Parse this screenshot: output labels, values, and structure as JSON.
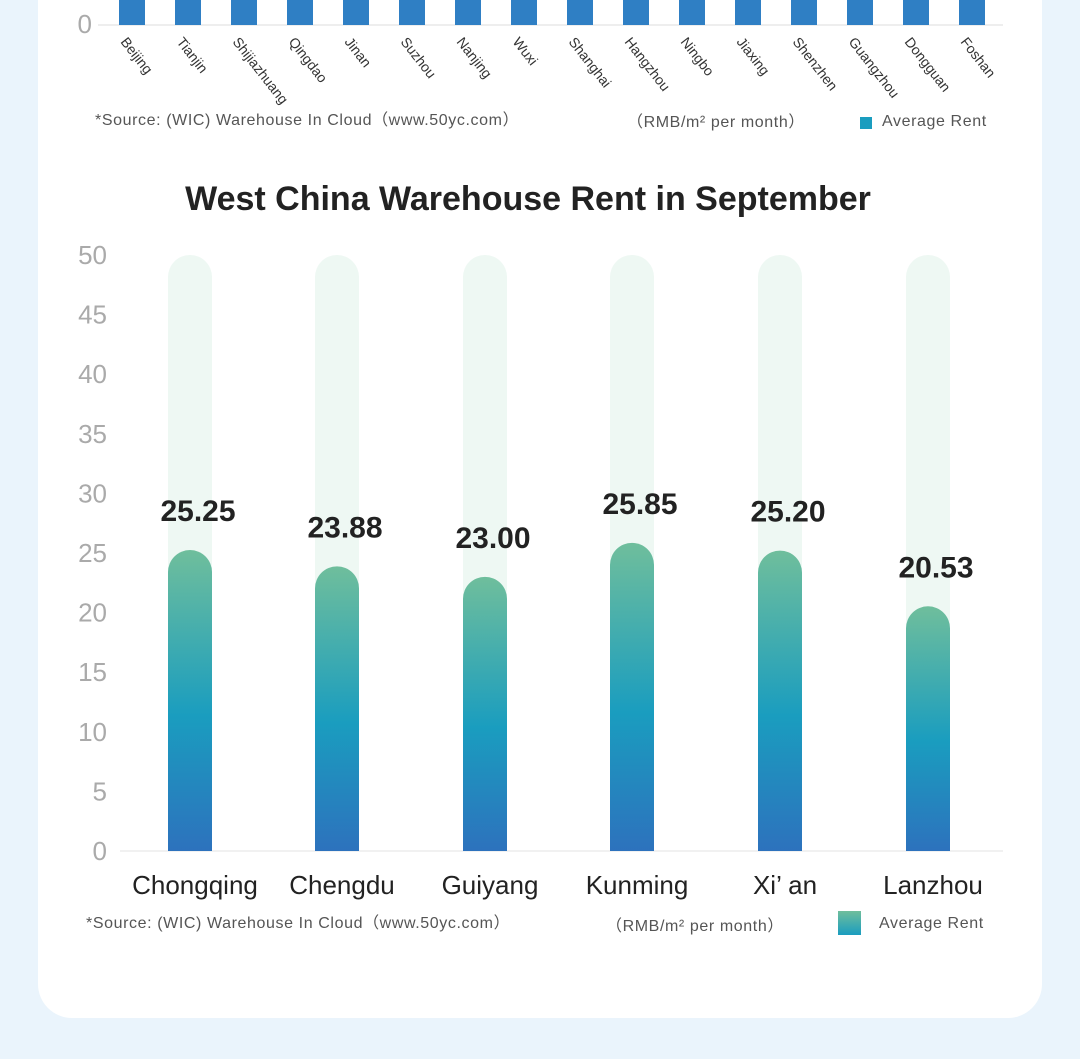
{
  "top_chart": {
    "y_zero_label": "0",
    "categories": [
      "Beijing",
      "Tianjin",
      "Shijiazhuang",
      "Qingdao",
      "Jinan",
      "Suzhou",
      "Nanjing",
      "Wuxi",
      "Shanghai",
      "Hangzhou",
      "Ningbo",
      "Jiaxing",
      "Shenzhen",
      "Guangzhou",
      "Dongguan",
      "Foshan"
    ],
    "source": "*Source: (WIC) Warehouse In Cloud（www.50yc.com）",
    "unit": "（RMB/m² per month）",
    "legend": "Average Rent",
    "bar_color": "#2f7fc4"
  },
  "chart_data": {
    "type": "bar",
    "title": "West China Warehouse Rent in September",
    "categories": [
      "Chongqing",
      "Chengdu",
      "Guiyang",
      "Kunming",
      "Xi’ an",
      "Lanzhou"
    ],
    "series": [
      {
        "name": "Average Rent",
        "values": [
          25.25,
          23.88,
          23.0,
          25.85,
          25.2,
          20.53
        ]
      }
    ],
    "value_labels": [
      "25.25",
      "23.88",
      "23.00",
      "25.85",
      "25.20",
      "20.53"
    ],
    "yticks": [
      "0",
      "5",
      "10",
      "15",
      "20",
      "25",
      "30",
      "35",
      "40",
      "45",
      "50"
    ],
    "ylim": [
      0,
      50
    ],
    "xlabel": "",
    "ylabel": "",
    "grid": false,
    "legend_position": "bottom-right",
    "colors": {
      "bar_top": "#6fbe9c",
      "bar_mid": "#1a9dbf",
      "bar_bottom": "#2d72bd",
      "track": "#eef8f3"
    }
  },
  "footer": {
    "source": "*Source: (WIC) Warehouse In Cloud（www.50yc.com）",
    "unit": "（RMB/m² per month）",
    "legend": "Average Rent"
  }
}
